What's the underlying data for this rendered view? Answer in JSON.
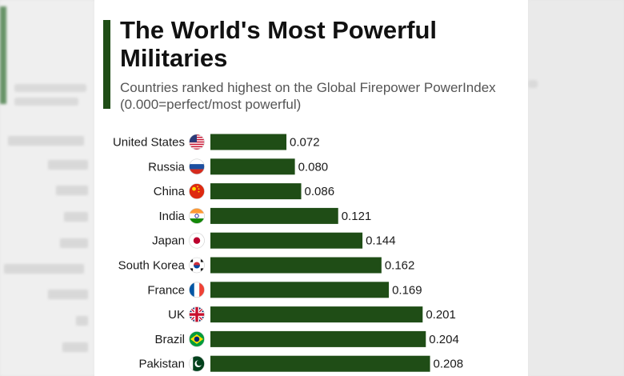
{
  "chart_data": {
    "type": "bar",
    "orientation": "horizontal",
    "title": "The World's Most Powerful Militaries",
    "subtitle": "Countries ranked highest on the Global Firepower PowerIndex (0.000=perfect/most powerful)",
    "categories": [
      "United States",
      "Russia",
      "China",
      "India",
      "Japan",
      "South Korea",
      "France",
      "UK",
      "Brazil",
      "Pakistan"
    ],
    "values": [
      0.072,
      0.08,
      0.086,
      0.121,
      0.144,
      0.162,
      0.169,
      0.201,
      0.204,
      0.208
    ],
    "value_labels": [
      "0.072",
      "0.080",
      "0.086",
      "0.121",
      "0.144",
      "0.162",
      "0.169",
      "0.201",
      "0.204",
      "0.208"
    ],
    "flags": [
      "us-flag-icon",
      "russia-flag-icon",
      "china-flag-icon",
      "india-flag-icon",
      "japan-flag-icon",
      "south-korea-flag-icon",
      "france-flag-icon",
      "uk-flag-icon",
      "brazil-flag-icon",
      "pakistan-flag-icon"
    ],
    "xlim": [
      0,
      0.25
    ],
    "grid": false,
    "legend": "none",
    "bar_color": "#1f4d16"
  }
}
